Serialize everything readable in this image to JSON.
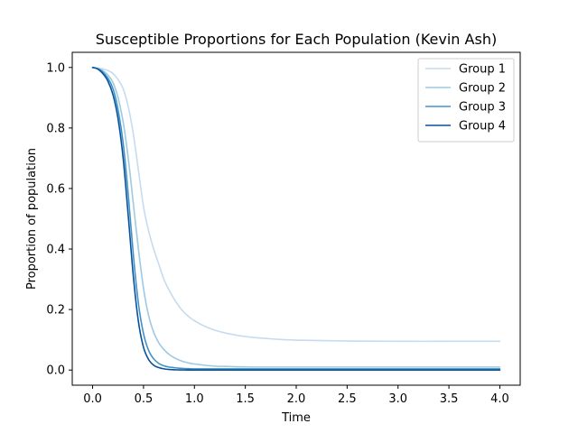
{
  "chart_data": {
    "type": "line",
    "title": "Susceptible Proportions for Each Population (Kevin Ash)",
    "xlabel": "Time",
    "ylabel": "Proportion of population",
    "xlim": [
      -0.2,
      4.2
    ],
    "ylim": [
      -0.05,
      1.05
    ],
    "xticks": [
      0.0,
      0.5,
      1.0,
      1.5,
      2.0,
      2.5,
      3.0,
      3.5,
      4.0
    ],
    "xtick_labels": [
      "0.0",
      "0.5",
      "1.0",
      "1.5",
      "2.0",
      "2.5",
      "3.0",
      "3.5",
      "4.0"
    ],
    "yticks": [
      0.0,
      0.2,
      0.4,
      0.6,
      0.8,
      1.0
    ],
    "ytick_labels": [
      "0.0",
      "0.2",
      "0.4",
      "0.6",
      "0.8",
      "1.0"
    ],
    "grid": false,
    "legend_position": "top-right",
    "x": [
      0.0,
      0.05,
      0.1,
      0.15,
      0.2,
      0.25,
      0.3,
      0.35,
      0.4,
      0.45,
      0.5,
      0.55,
      0.6,
      0.65,
      0.7,
      0.75,
      0.8,
      0.85,
      0.9,
      0.95,
      1.0,
      1.1,
      1.2,
      1.3,
      1.4,
      1.5,
      1.6,
      1.8,
      2.0,
      2.5,
      3.0,
      3.5,
      4.0
    ],
    "series": [
      {
        "name": "Group 1",
        "color": "#c6dbef",
        "values": [
          1.0,
          0.998,
          0.995,
          0.99,
          0.98,
          0.96,
          0.93,
          0.87,
          0.78,
          0.66,
          0.54,
          0.46,
          0.4,
          0.35,
          0.3,
          0.265,
          0.235,
          0.21,
          0.19,
          0.175,
          0.163,
          0.145,
          0.132,
          0.123,
          0.116,
          0.111,
          0.107,
          0.102,
          0.099,
          0.096,
          0.095,
          0.095,
          0.095
        ]
      },
      {
        "name": "Group 2",
        "color": "#9ecae1",
        "values": [
          1.0,
          0.997,
          0.99,
          0.975,
          0.95,
          0.9,
          0.82,
          0.7,
          0.55,
          0.4,
          0.27,
          0.18,
          0.125,
          0.09,
          0.068,
          0.052,
          0.041,
          0.033,
          0.027,
          0.023,
          0.02,
          0.016,
          0.013,
          0.012,
          0.011,
          0.0105,
          0.01,
          0.01,
          0.01,
          0.01,
          0.01,
          0.01,
          0.01
        ]
      },
      {
        "name": "Group 3",
        "color": "#4292c6",
        "values": [
          1.0,
          0.996,
          0.985,
          0.965,
          0.93,
          0.86,
          0.75,
          0.58,
          0.38,
          0.22,
          0.12,
          0.065,
          0.037,
          0.022,
          0.014,
          0.01,
          0.008,
          0.006,
          0.005,
          0.0045,
          0.004,
          0.004,
          0.004,
          0.004,
          0.004,
          0.004,
          0.004,
          0.004,
          0.004,
          0.004,
          0.004,
          0.004,
          0.004
        ]
      },
      {
        "name": "Group 4",
        "color": "#08519c",
        "values": [
          1.0,
          0.995,
          0.98,
          0.955,
          0.91,
          0.83,
          0.7,
          0.51,
          0.31,
          0.16,
          0.075,
          0.035,
          0.016,
          0.008,
          0.004,
          0.002,
          0.001,
          0.0006,
          0.0003,
          0.0002,
          0.0001,
          0.0,
          0.0,
          0.0,
          0.0,
          0.0,
          0.0,
          0.0,
          0.0,
          0.0,
          0.0,
          0.0,
          0.0
        ]
      }
    ]
  }
}
